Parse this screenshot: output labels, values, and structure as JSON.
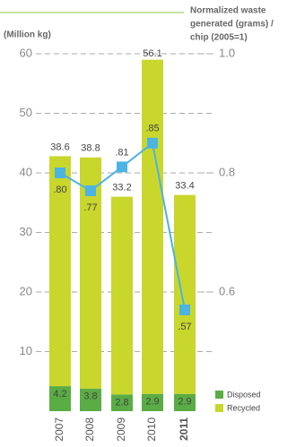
{
  "chart_data": {
    "type": "stacked-bar-line",
    "ylabel": "(Million kg)",
    "y2label": [
      "Normalized waste",
      "generated (grams) /",
      "chip (2005=1)"
    ],
    "categories": [
      "2007",
      "2008",
      "2009",
      "2010",
      "2011"
    ],
    "highlight_category_index": 4,
    "series": [
      {
        "name": "Disposed",
        "color": "#5aac44",
        "values": [
          4.2,
          3.8,
          2.8,
          2.9,
          2.9
        ]
      },
      {
        "name": "Recycled",
        "color": "#c9d62c",
        "values": [
          38.6,
          38.8,
          33.2,
          56.1,
          33.4
        ]
      },
      {
        "name": "Normalized waste",
        "color": "#4cb3e3",
        "axis": "y2",
        "values": [
          0.8,
          0.77,
          0.81,
          0.85,
          0.57
        ],
        "value_labels": [
          ".80",
          ".77",
          ".81",
          ".85",
          ".57"
        ]
      }
    ],
    "ylim": [
      0,
      60
    ],
    "yticks": [
      10,
      20,
      30,
      40,
      50,
      60
    ],
    "y2lim": [
      0.4,
      1
    ],
    "y2ticks": [
      0.6,
      0.8,
      {
        "value": 1,
        "label": "1.0"
      }
    ],
    "grid": true
  }
}
